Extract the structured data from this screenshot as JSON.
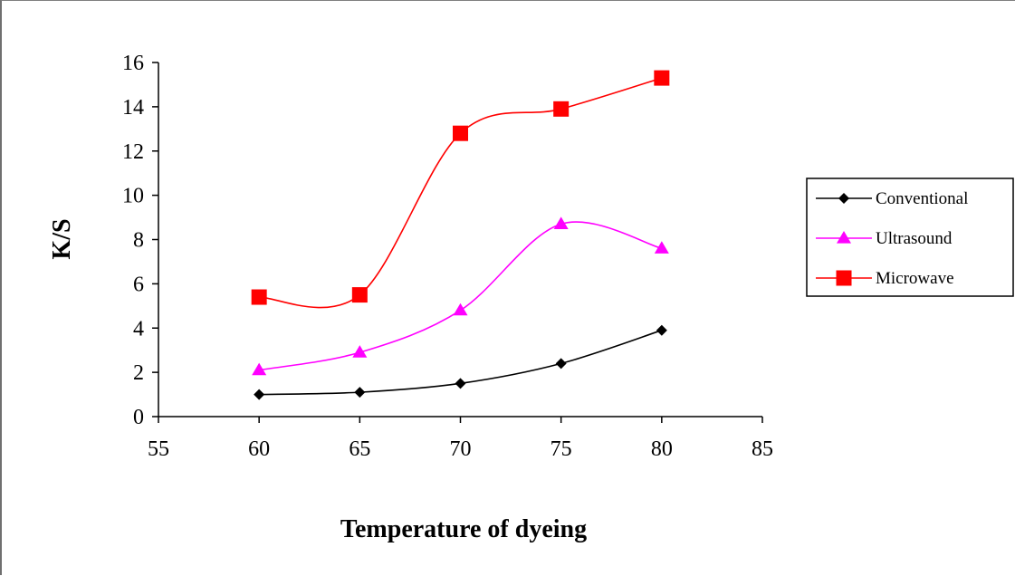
{
  "chart_data": {
    "type": "line",
    "title": "",
    "xlabel": "Temperature of dyeing",
    "ylabel": "K/S",
    "xlim": [
      55,
      85
    ],
    "ylim": [
      0,
      16
    ],
    "xticks": [
      55,
      60,
      65,
      70,
      75,
      80,
      85
    ],
    "yticks": [
      0,
      2,
      4,
      6,
      8,
      10,
      12,
      14,
      16
    ],
    "grid": false,
    "legend_position": "right",
    "x": [
      60,
      65,
      70,
      75,
      80
    ],
    "series": [
      {
        "name": "Conventional",
        "values": [
          1.0,
          1.1,
          1.5,
          2.4,
          3.9
        ],
        "color": "#000000",
        "marker": "diamond"
      },
      {
        "name": "Ultrasound",
        "values": [
          2.1,
          2.9,
          4.8,
          8.7,
          7.6
        ],
        "color": "#ff00ff",
        "marker": "triangle"
      },
      {
        "name": "Microwave",
        "values": [
          5.4,
          5.5,
          12.8,
          13.9,
          15.3
        ],
        "color": "#ff0000",
        "marker": "square"
      }
    ]
  }
}
